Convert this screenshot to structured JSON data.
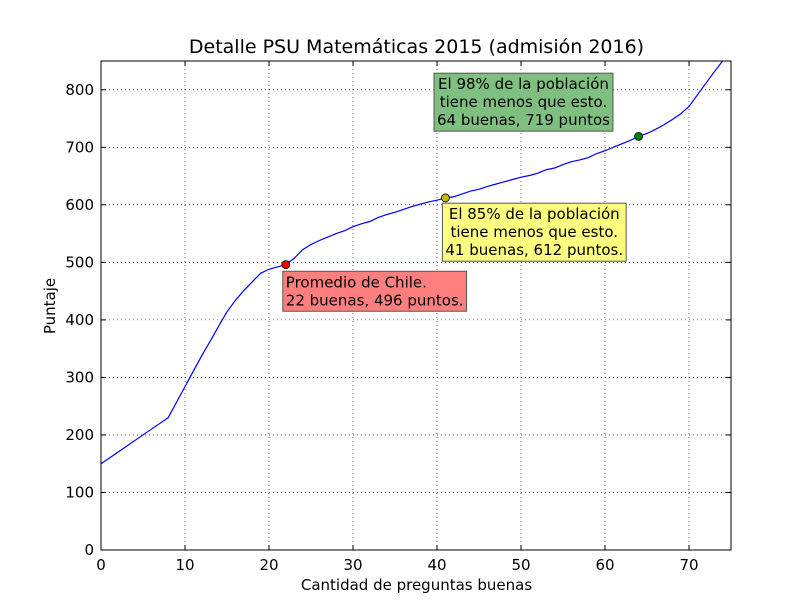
{
  "chart_data": {
    "type": "line",
    "title": "Detalle PSU Matemáticas 2015 (admisión 2016)",
    "xlabel": "Cantidad de preguntas buenas",
    "ylabel": "Puntaje",
    "xlim": [
      0,
      75
    ],
    "ylim": [
      0,
      850
    ],
    "xticks": [
      0,
      10,
      20,
      30,
      40,
      50,
      60,
      70
    ],
    "yticks": [
      0,
      100,
      200,
      300,
      400,
      500,
      600,
      700,
      800
    ],
    "grid": true,
    "line_color": "#0000ff",
    "series": [
      {
        "x": [
          0,
          1,
          2,
          3,
          4,
          5,
          6,
          7,
          8,
          9,
          10,
          11,
          12,
          13,
          14,
          15,
          16,
          17,
          18,
          19,
          20,
          21,
          22,
          23,
          24,
          25,
          26,
          27,
          28,
          29,
          30,
          31,
          32,
          33,
          34,
          35,
          36,
          37,
          38,
          39,
          40,
          41,
          42,
          43,
          44,
          45,
          46,
          47,
          48,
          49,
          50,
          51,
          52,
          53,
          54,
          55,
          56,
          57,
          58,
          59,
          60,
          61,
          62,
          63,
          64,
          65,
          66,
          67,
          68,
          69,
          70,
          71,
          72,
          73,
          74,
          75
        ],
        "y": [
          150,
          160,
          170,
          180,
          190,
          200,
          210,
          220,
          230,
          257,
          284,
          311,
          338,
          363,
          389,
          414,
          434,
          451,
          466,
          481,
          488,
          492,
          496,
          507,
          522,
          531,
          538,
          544,
          550,
          555,
          562,
          567,
          571,
          578,
          583,
          587,
          592,
          597,
          601,
          605,
          608,
          612,
          614,
          619,
          624,
          627,
          632,
          636,
          640,
          644,
          648,
          651,
          655,
          661,
          664,
          670,
          675,
          678,
          682,
          689,
          694,
          700,
          706,
          712,
          719,
          724,
          731,
          739,
          748,
          758,
          771,
          791,
          811,
          831,
          850,
          870
        ]
      }
    ],
    "markers": [
      {
        "x": 22,
        "y": 496,
        "color": "#ff0000"
      },
      {
        "x": 41,
        "y": 612,
        "color": "#bfbf00"
      },
      {
        "x": 64,
        "y": 719,
        "color": "#008000"
      }
    ],
    "annotations": [
      {
        "lines": [
          "Promedio de Chile.",
          "22 buenas, 496 puntos."
        ],
        "x": 22,
        "y": 415,
        "bg": "#ff7f7f",
        "align": "start"
      },
      {
        "lines": [
          "El 85% de la población",
          "tiene menos que esto.",
          "41 buenas, 612 puntos."
        ],
        "x": 41,
        "y": 502,
        "bg": "#ffff7f",
        "align": "center"
      },
      {
        "lines": [
          "El 98% de la población",
          "tiene menos que esto.",
          "64 buenas, 719 puntos"
        ],
        "x": 40,
        "y": 728,
        "bg": "#7fbf7f",
        "align": "center"
      }
    ]
  }
}
